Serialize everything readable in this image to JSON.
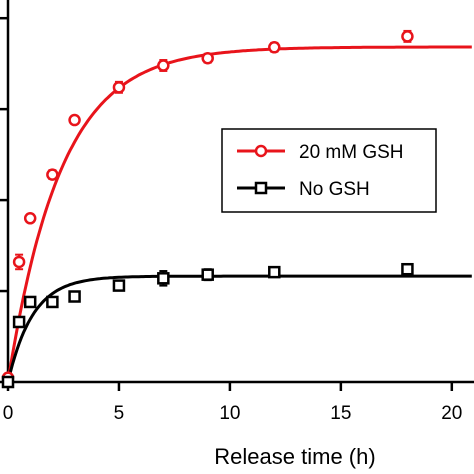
{
  "chart_data": {
    "type": "scatter",
    "title": "",
    "xlabel": "Release time (h)",
    "ylabel": "",
    "xlim": [
      0,
      21
    ],
    "ylim": [
      0,
      1.05
    ],
    "x_ticks": [
      0,
      5,
      10,
      15,
      20
    ],
    "x_tick_labels": [
      "0",
      "5",
      "10",
      "15",
      "20"
    ],
    "y_ticks": [
      0,
      0.25,
      0.5,
      0.75,
      1.0
    ],
    "grid": false,
    "legend_position": "right",
    "series": [
      {
        "name": "20 mM GSH",
        "marker": "circle",
        "color": "#e8141b",
        "x": [
          0,
          0.5,
          1,
          2,
          3,
          5,
          7,
          9,
          12,
          18
        ],
        "y": [
          0.012,
          0.33,
          0.45,
          0.57,
          0.72,
          0.81,
          0.87,
          0.89,
          0.92,
          0.95
        ],
        "err": [
          0.01,
          0.02,
          0.01,
          0.012,
          0.01,
          0.015,
          0.015,
          0.012,
          0.012,
          0.015
        ],
        "fit": {
          "plateau": 0.921,
          "rate": 0.42
        }
      },
      {
        "name": "No GSH",
        "marker": "square",
        "color": "#000000",
        "x": [
          0,
          0.5,
          1,
          2,
          3,
          5,
          7,
          9,
          12,
          18
        ],
        "y": [
          0.0,
          0.165,
          0.22,
          0.22,
          0.235,
          0.265,
          0.285,
          0.295,
          0.302,
          0.31
        ],
        "err": [
          0.005,
          0.01,
          0.01,
          0.012,
          0.01,
          0.012,
          0.02,
          0.015,
          0.01,
          0.012
        ],
        "fit": {
          "plateau": 0.291,
          "rate": 0.9
        }
      }
    ]
  }
}
